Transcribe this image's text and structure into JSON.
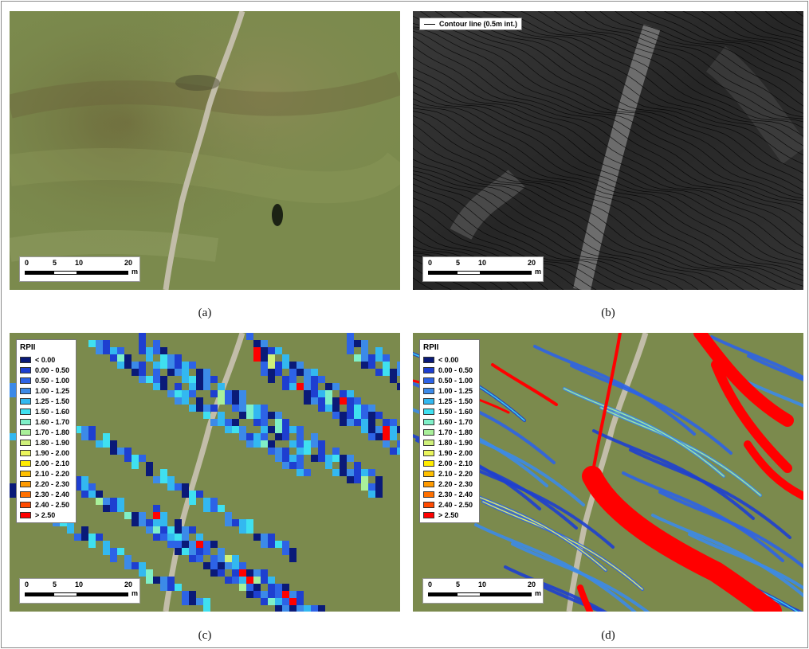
{
  "captions": {
    "a": "(a)",
    "b": "(b)",
    "c": "(c)",
    "d": "(d)"
  },
  "scalebar": {
    "ticks": [
      "0",
      "5",
      "10",
      "20"
    ],
    "unit": "m"
  },
  "contour_legend": "Contour line (0.5m int.)",
  "legend": {
    "title": "RPII",
    "items": [
      {
        "label": "< 0.00",
        "color": "#0a1a78"
      },
      {
        "label": "0.00 - 0.50",
        "color": "#1e3fd0"
      },
      {
        "label": "0.50 - 1.00",
        "color": "#2d63e6"
      },
      {
        "label": "1.00 - 1.25",
        "color": "#3c8ae8"
      },
      {
        "label": "1.25 - 1.50",
        "color": "#33b8f0"
      },
      {
        "label": "1.50 - 1.60",
        "color": "#3fe0f0"
      },
      {
        "label": "1.60 - 1.70",
        "color": "#7ff0c8"
      },
      {
        "label": "1.70 - 1.80",
        "color": "#a9f09a"
      },
      {
        "label": "1.80 - 1.90",
        "color": "#cff07a"
      },
      {
        "label": "1.90 - 2.00",
        "color": "#eaf55c"
      },
      {
        "label": "2.00 - 2.10",
        "color": "#ffec00"
      },
      {
        "label": "2.10 - 2.20",
        "color": "#ffc000"
      },
      {
        "label": "2.20 - 2.30",
        "color": "#ff9a00"
      },
      {
        "label": "2.30 - 2.40",
        "color": "#ff7000"
      },
      {
        "label": "2.40 - 2.50",
        "color": "#ff4a00"
      },
      {
        "label": "> 2.50",
        "color": "#ff0000"
      }
    ]
  },
  "colors": {
    "grass": "#7b8a4d",
    "path": "#b9b4a5",
    "dark_bg": "#2b2b2b",
    "contour": "#000000",
    "stream_red": "#ff0000"
  }
}
